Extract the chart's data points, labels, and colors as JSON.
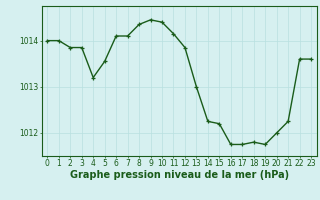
{
  "x": [
    0,
    1,
    2,
    3,
    4,
    5,
    6,
    7,
    8,
    9,
    10,
    11,
    12,
    13,
    14,
    15,
    16,
    17,
    18,
    19,
    20,
    21,
    22,
    23
  ],
  "y": [
    1014.0,
    1014.0,
    1013.85,
    1013.85,
    1013.2,
    1013.55,
    1014.1,
    1014.1,
    1014.35,
    1014.45,
    1014.4,
    1014.15,
    1013.85,
    1013.0,
    1012.25,
    1012.2,
    1011.75,
    1011.75,
    1011.8,
    1011.75,
    1012.0,
    1012.25,
    1013.6,
    1013.6
  ],
  "line_color": "#1a5c1a",
  "marker": "+",
  "bg_color": "#d6f0f0",
  "grid_color": "#b8e0e0",
  "xlabel": "Graphe pression niveau de la mer (hPa)",
  "ylim": [
    1011.5,
    1014.75
  ],
  "yticks": [
    1012,
    1013,
    1014
  ],
  "xticks": [
    0,
    1,
    2,
    3,
    4,
    5,
    6,
    7,
    8,
    9,
    10,
    11,
    12,
    13,
    14,
    15,
    16,
    17,
    18,
    19,
    20,
    21,
    22,
    23
  ],
  "xlabel_fontsize": 7,
  "tick_fontsize": 5.5,
  "linewidth": 1.0,
  "markersize": 3
}
